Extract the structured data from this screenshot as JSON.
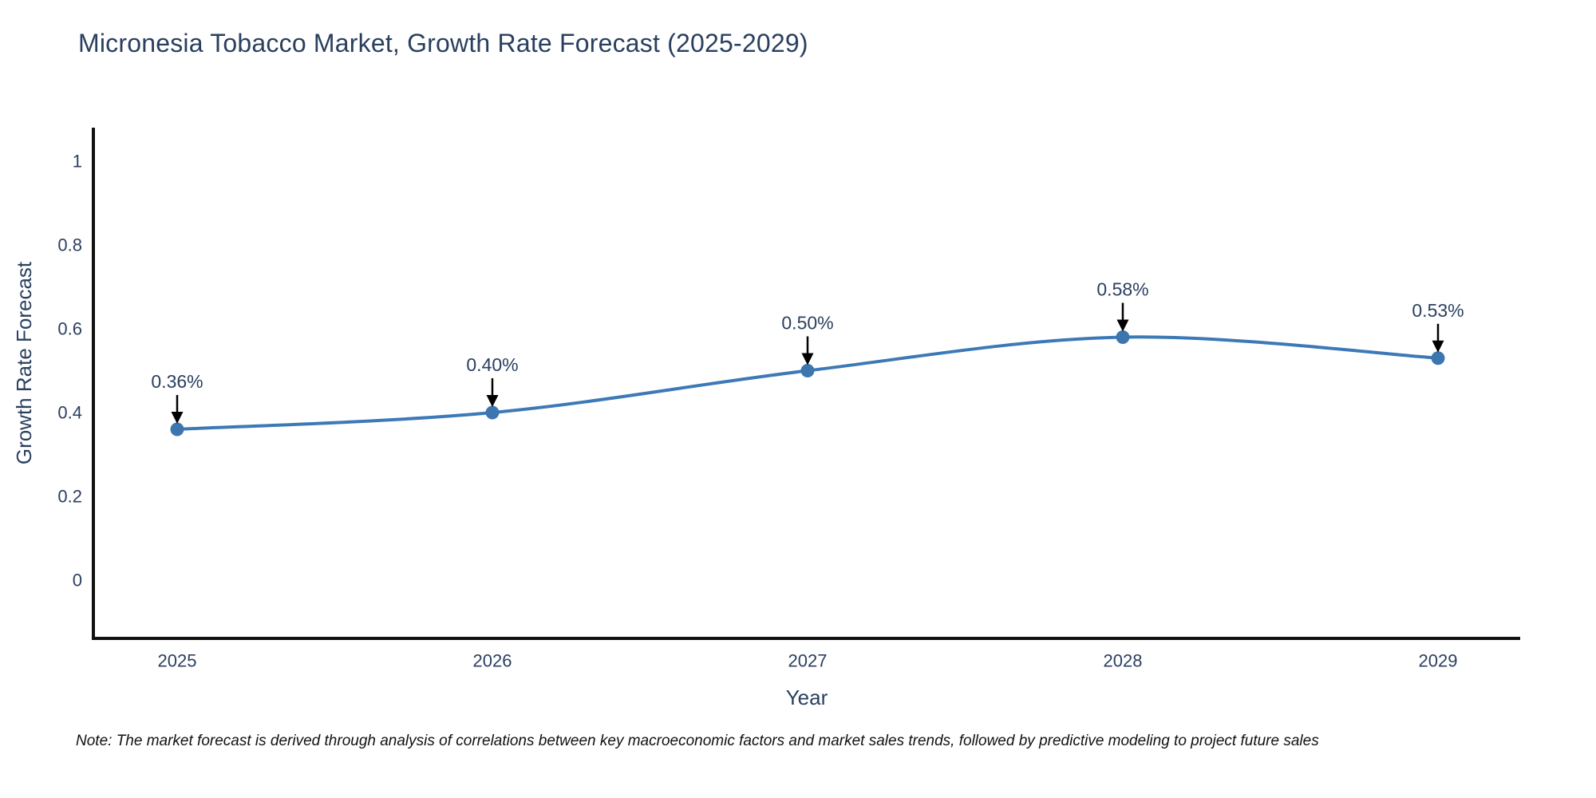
{
  "page": {
    "title": "Micronesia Tobacco Market, Growth Rate Forecast (2025-2029)",
    "note": "Note: The market forecast is derived through analysis of correlations between key macroeconomic factors and market sales trends, followed by predictive modeling to project future sales"
  },
  "colors": {
    "title_text": "#2a3f5f",
    "axis_text": "#2a3f5f",
    "axis_line": "#111111",
    "series_line": "#3c79b6",
    "marker_fill": "#3c76af",
    "annotation_text": "#2a3f5f",
    "annotation_arrow": "#000000",
    "note_text": "#111111",
    "background": "#ffffff"
  },
  "chart_data": {
    "type": "line",
    "title": "Micronesia Tobacco Market, Growth Rate Forecast (2025-2029)",
    "xlabel": "Year",
    "ylabel": "Growth Rate Forecast",
    "x": [
      "2025",
      "2026",
      "2027",
      "2028",
      "2029"
    ],
    "values": [
      0.36,
      0.4,
      0.5,
      0.58,
      0.53
    ],
    "point_labels": [
      "0.36%",
      "0.40%",
      "0.50%",
      "0.58%",
      "0.53%"
    ],
    "y_ticks": [
      0,
      0.2,
      0.4,
      0.6,
      0.8,
      1
    ],
    "y_tick_labels": [
      "0",
      "0.2",
      "0.4",
      "0.6",
      "0.8",
      "1"
    ],
    "ylim": [
      -0.14,
      1.08
    ],
    "grid": false,
    "legend": false,
    "line_shape": "spline",
    "marker": "circle",
    "annotations": "value label with downward arrow above each point"
  }
}
